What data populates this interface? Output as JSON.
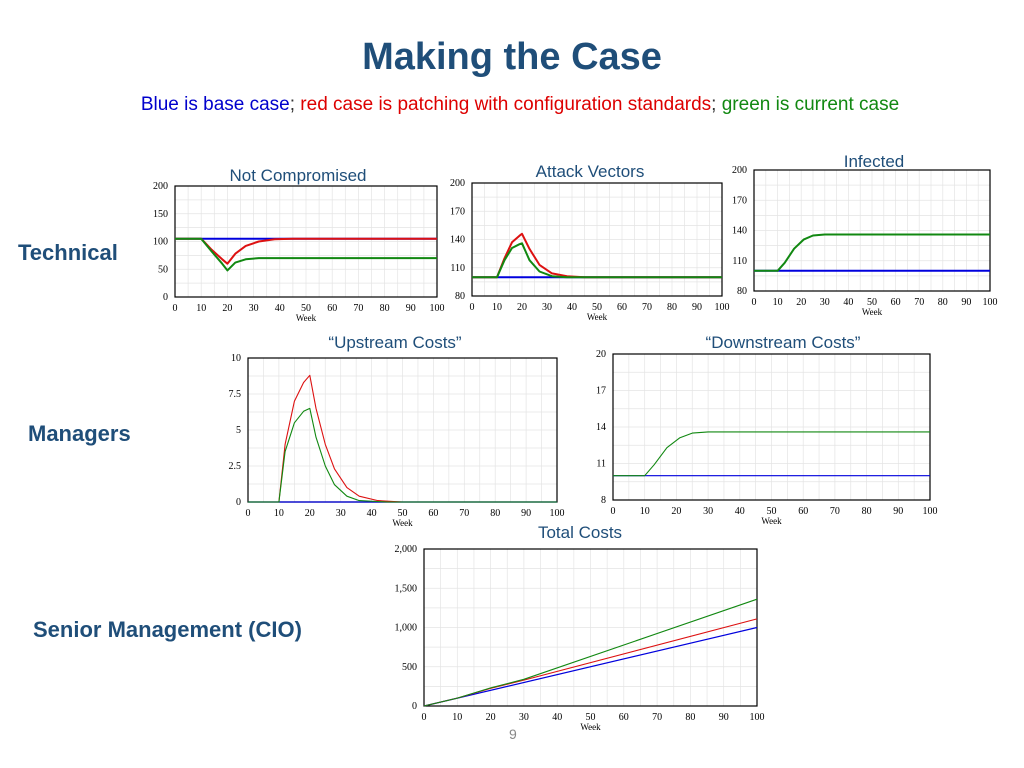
{
  "slide": {
    "title": "Making the Case",
    "subtitle": {
      "blue": "Blue is base case",
      "sep1": ";",
      "red": " red case is patching with configuration standards",
      "sep2": ";",
      "green": " green is current case"
    },
    "page_number": "9",
    "row_labels": {
      "technical": "Technical",
      "managers": "Managers",
      "senior": "Senior Management (CIO)"
    }
  },
  "colors": {
    "blue": "#0000dd",
    "red": "#dd1111",
    "green": "#118811"
  },
  "chart_data": [
    {
      "id": "not-compromised",
      "type": "line",
      "title": "Not Compromised",
      "xlabel": "Week",
      "ylabel": "",
      "xlim": [
        0,
        100
      ],
      "ylim": [
        0,
        200
      ],
      "xticks": [
        "0",
        "10",
        "20",
        "30",
        "40",
        "50",
        "60",
        "70",
        "80",
        "90",
        "100"
      ],
      "yticks": [
        "0",
        "50",
        "100",
        "150",
        "200"
      ],
      "series": [
        {
          "name": "base case",
          "color": "blue",
          "x": [
            0,
            100
          ],
          "y": [
            105,
            105
          ]
        },
        {
          "name": "patching with configuration standards",
          "color": "red",
          "x": [
            0,
            10,
            14,
            18,
            20,
            23,
            27,
            32,
            38,
            45,
            100
          ],
          "y": [
            105,
            105,
            85,
            68,
            60,
            78,
            92,
            100,
            104,
            105,
            105
          ]
        },
        {
          "name": "current case",
          "color": "green",
          "x": [
            0,
            10,
            14,
            18,
            20,
            23,
            27,
            32,
            40,
            100
          ],
          "y": [
            105,
            105,
            82,
            60,
            48,
            62,
            68,
            70,
            70,
            70
          ]
        }
      ]
    },
    {
      "id": "attack-vectors",
      "type": "line",
      "title": "Attack Vectors",
      "xlabel": "Week",
      "ylabel": "",
      "xlim": [
        0,
        100
      ],
      "ylim": [
        80,
        200
      ],
      "xticks": [
        "0",
        "10",
        "20",
        "30",
        "40",
        "50",
        "60",
        "70",
        "80",
        "90",
        "100"
      ],
      "yticks": [
        "80",
        "110",
        "140",
        "170",
        "200"
      ],
      "series": [
        {
          "name": "base case",
          "color": "blue",
          "x": [
            0,
            100
          ],
          "y": [
            100,
            100
          ]
        },
        {
          "name": "patching with configuration standards",
          "color": "red",
          "x": [
            0,
            10,
            13,
            16,
            19,
            20,
            23,
            27,
            32,
            38,
            45,
            100
          ],
          "y": [
            100,
            100,
            120,
            137,
            144,
            146,
            130,
            113,
            104,
            101,
            100,
            100
          ]
        },
        {
          "name": "current case",
          "color": "green",
          "x": [
            0,
            10,
            13,
            16,
            19,
            20,
            23,
            27,
            32,
            38,
            100
          ],
          "y": [
            100,
            100,
            118,
            131,
            135,
            136,
            118,
            106,
            101,
            100,
            100
          ]
        }
      ]
    },
    {
      "id": "infected",
      "type": "line",
      "title": "Infected",
      "xlabel": "Week",
      "ylabel": "",
      "xlim": [
        0,
        100
      ],
      "ylim": [
        80,
        200
      ],
      "xticks": [
        "0",
        "10",
        "20",
        "30",
        "40",
        "50",
        "60",
        "70",
        "80",
        "90",
        "100"
      ],
      "yticks": [
        "80",
        "110",
        "140",
        "170",
        "200"
      ],
      "series": [
        {
          "name": "base case",
          "color": "blue",
          "x": [
            0,
            100
          ],
          "y": [
            100,
            100
          ]
        },
        {
          "name": "current case",
          "color": "green",
          "x": [
            0,
            10,
            13,
            17,
            21,
            25,
            30,
            40,
            100
          ],
          "y": [
            100,
            100,
            108,
            122,
            131,
            135,
            136,
            136,
            136
          ]
        }
      ]
    },
    {
      "id": "upstream-costs",
      "type": "line",
      "title": "“Upstream Costs”",
      "xlabel": "Week",
      "ylabel": "",
      "xlim": [
        0,
        100
      ],
      "ylim": [
        0,
        10
      ],
      "xticks": [
        "0",
        "10",
        "20",
        "30",
        "40",
        "50",
        "60",
        "70",
        "80",
        "90",
        "100"
      ],
      "yticks": [
        "0",
        "2.5",
        "5",
        "7.5",
        "10"
      ],
      "series": [
        {
          "name": "base case",
          "color": "blue",
          "x": [
            0,
            100
          ],
          "y": [
            0,
            0
          ]
        },
        {
          "name": "patching with configuration standards",
          "color": "red",
          "x": [
            0,
            10,
            12,
            15,
            18,
            20,
            22,
            25,
            28,
            32,
            36,
            42,
            50,
            100
          ],
          "y": [
            0,
            0,
            4.0,
            7.0,
            8.3,
            8.8,
            6.5,
            4.0,
            2.3,
            1.0,
            0.4,
            0.1,
            0,
            0
          ]
        },
        {
          "name": "current case",
          "color": "green",
          "x": [
            0,
            10,
            12,
            15,
            18,
            20,
            22,
            25,
            28,
            32,
            36,
            45,
            100
          ],
          "y": [
            0,
            0,
            3.5,
            5.5,
            6.3,
            6.5,
            4.5,
            2.5,
            1.2,
            0.4,
            0.1,
            0,
            0
          ]
        }
      ]
    },
    {
      "id": "downstream-costs",
      "type": "line",
      "title": "“Downstream Costs”",
      "xlabel": "Week",
      "ylabel": "",
      "xlim": [
        0,
        100
      ],
      "ylim": [
        8,
        20
      ],
      "xticks": [
        "0",
        "10",
        "20",
        "30",
        "40",
        "50",
        "60",
        "70",
        "80",
        "90",
        "100"
      ],
      "yticks": [
        "8",
        "11",
        "14",
        "17",
        "20"
      ],
      "series": [
        {
          "name": "base case",
          "color": "blue",
          "x": [
            0,
            100
          ],
          "y": [
            10,
            10
          ]
        },
        {
          "name": "current case",
          "color": "green",
          "x": [
            0,
            10,
            13,
            17,
            21,
            25,
            30,
            40,
            100
          ],
          "y": [
            10,
            10,
            10.9,
            12.3,
            13.1,
            13.5,
            13.6,
            13.6,
            13.6
          ]
        }
      ]
    },
    {
      "id": "total-costs",
      "type": "line",
      "title": "Total Costs",
      "xlabel": "Week",
      "ylabel": "",
      "xlim": [
        0,
        100
      ],
      "ylim": [
        0,
        2000
      ],
      "xticks": [
        "0",
        "10",
        "20",
        "30",
        "40",
        "50",
        "60",
        "70",
        "80",
        "90",
        "100"
      ],
      "yticks": [
        "0",
        "500",
        "1,000",
        "1,500",
        "2,000"
      ],
      "series": [
        {
          "name": "base case",
          "color": "blue",
          "x": [
            0,
            100
          ],
          "y": [
            0,
            1000
          ]
        },
        {
          "name": "patching with configuration standards",
          "color": "red",
          "x": [
            0,
            10,
            20,
            30,
            100
          ],
          "y": [
            0,
            100,
            225,
            330,
            1110
          ]
        },
        {
          "name": "current case",
          "color": "green",
          "x": [
            0,
            10,
            20,
            30,
            100
          ],
          "y": [
            0,
            100,
            230,
            340,
            1360
          ]
        }
      ]
    }
  ]
}
